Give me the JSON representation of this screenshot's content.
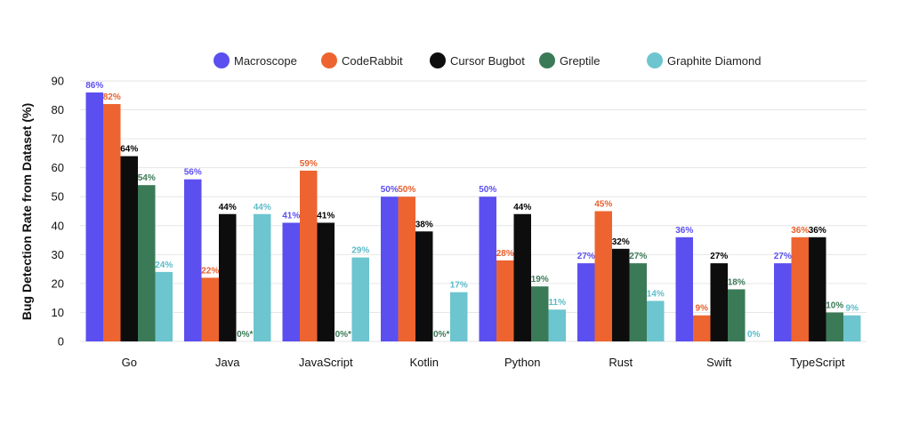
{
  "chart_data": {
    "type": "bar",
    "ylabel": "Bug Detection Rate from Dataset (%)",
    "xlabel": "",
    "ylim": [
      0,
      90
    ],
    "yticks": [
      0,
      10,
      20,
      30,
      40,
      50,
      60,
      70,
      80,
      90
    ],
    "grid": true,
    "legend_position": "top-center",
    "categories": [
      "Go",
      "Java",
      "JavaScript",
      "Kotlin",
      "Python",
      "Rust",
      "Swift",
      "TypeScript"
    ],
    "series": [
      {
        "name": "Macroscope",
        "color": "#5b4ff0",
        "label_color": "#5b4ff0",
        "values": [
          86,
          56,
          41,
          50,
          50,
          27,
          36,
          27
        ],
        "labels": [
          "86%",
          "56%",
          "41%",
          "50%",
          "50%",
          "27%",
          "36%",
          "27%"
        ]
      },
      {
        "name": "CodeRabbit",
        "color": "#ed6430",
        "label_color": "#e8602c",
        "values": [
          82,
          22,
          59,
          50,
          28,
          45,
          9,
          36
        ],
        "labels": [
          "82%",
          "22%",
          "59%",
          "50%",
          "28%",
          "45%",
          "9%",
          "36%"
        ]
      },
      {
        "name": "Cursor Bugbot",
        "color": "#0d0d0d",
        "label_color": "#000000",
        "values": [
          64,
          44,
          41,
          38,
          44,
          32,
          27,
          36
        ],
        "labels": [
          "64%",
          "44%",
          "41%",
          "38%",
          "44%",
          "32%",
          "27%",
          "36%"
        ]
      },
      {
        "name": "Greptile",
        "color": "#3b7a57",
        "label_color": "#3b7a57",
        "values": [
          54,
          0,
          0,
          0,
          19,
          27,
          18,
          10
        ],
        "labels": [
          "54%",
          "0%*",
          "0%*",
          "0%*",
          "19%",
          "27%",
          "18%",
          "10%"
        ]
      },
      {
        "name": "Graphite Diamond",
        "color": "#6cc5cf",
        "label_color": "#5bbcc8",
        "values": [
          24,
          44,
          29,
          17,
          11,
          14,
          0,
          9
        ],
        "labels": [
          "24%",
          "44%",
          "29%",
          "17%",
          "11%",
          "14%",
          "0%",
          "9%"
        ]
      }
    ]
  }
}
